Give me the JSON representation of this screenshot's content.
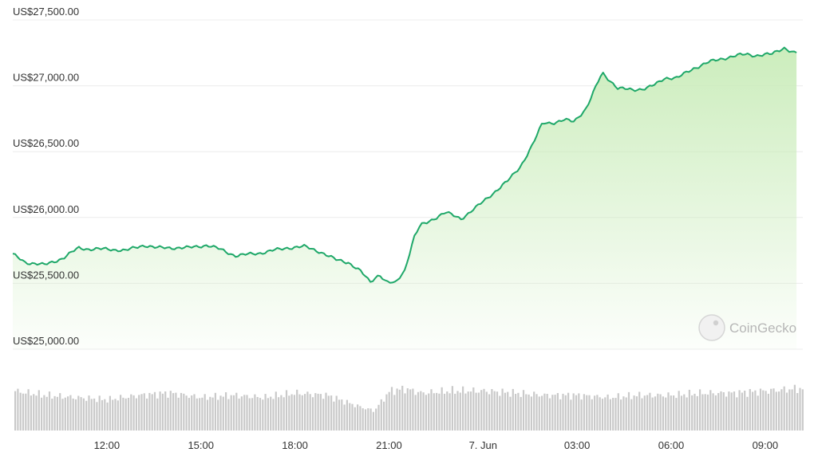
{
  "chart_data": {
    "type": "area",
    "watermark": "CoinGecko",
    "price": {
      "yticks": [
        25000,
        25500,
        26000,
        26500,
        27000,
        27500
      ],
      "ytick_labels": [
        "US$25,000.00",
        "US$25,500.00",
        "US$26,000.00",
        "US$26,500.00",
        "US$27,000.00",
        "US$27,500.00"
      ],
      "ylim": [
        25000,
        27500
      ],
      "x": [
        9.0,
        9.4,
        10.0,
        10.6,
        11.1,
        11.4,
        12.0,
        12.6,
        13.2,
        13.6,
        14.1,
        14.6,
        15.2,
        15.6,
        16.1,
        16.5,
        16.9,
        17.3,
        17.8,
        18.3,
        18.8,
        19.3,
        19.7,
        20.1,
        20.4,
        20.7,
        20.9,
        21.2,
        21.5,
        21.8,
        22.0,
        22.2,
        22.5,
        22.8,
        23.3,
        23.8,
        24.3,
        24.8,
        25.2,
        25.6,
        25.9,
        26.3,
        26.6,
        26.9,
        27.3,
        27.8,
        28.3,
        28.8,
        29.2,
        29.5,
        29.8,
        30.2,
        30.7,
        31.2,
        31.7,
        32.1,
        32.4,
        32.7,
        33.2,
        33.6,
        33.9,
        34.0
      ],
      "values": [
        25720,
        25660,
        25640,
        25690,
        25770,
        25760,
        25760,
        25750,
        25790,
        25770,
        25770,
        25770,
        25790,
        25760,
        25710,
        25720,
        25730,
        25750,
        25770,
        25780,
        25740,
        25680,
        25660,
        25590,
        25510,
        25570,
        25510,
        25500,
        25600,
        25850,
        25940,
        25960,
        26000,
        26040,
        25990,
        26080,
        26180,
        26280,
        26390,
        26560,
        26720,
        26720,
        26740,
        26730,
        26830,
        27100,
        26980,
        26970,
        26980,
        27010,
        27060,
        27060,
        27130,
        27180,
        27210,
        27230,
        27240,
        27230,
        27240,
        27290,
        27250,
        27250
      ]
    },
    "volume": {
      "x": [
        9.0,
        10.0,
        11.0,
        12.0,
        13.0,
        14.0,
        15.0,
        16.0,
        17.0,
        18.0,
        19.0,
        20.0,
        20.5,
        21.0,
        21.5,
        22.0,
        23.0,
        24.0,
        25.0,
        26.0,
        27.0,
        28.0,
        29.0,
        30.0,
        31.0,
        32.0,
        33.0,
        34.0
      ],
      "values": [
        0.9,
        0.8,
        0.75,
        0.7,
        0.8,
        0.85,
        0.75,
        0.8,
        0.75,
        0.85,
        0.8,
        0.55,
        0.45,
        0.9,
        0.95,
        0.85,
        0.9,
        0.9,
        0.85,
        0.8,
        0.8,
        0.75,
        0.8,
        0.8,
        0.85,
        0.85,
        0.9,
        0.95
      ]
    },
    "xticks": [
      12,
      15,
      18,
      21,
      24,
      27,
      30,
      33
    ],
    "xtick_labels": [
      "12:00",
      "15:00",
      "18:00",
      "21:00",
      "7. Jun",
      "03:00",
      "06:00",
      "09:00"
    ],
    "xlim": [
      9.0,
      34.2
    ],
    "grid": true,
    "colors": {
      "line": "#1fa869",
      "fill_top": "#c9ecb9",
      "grid": "#ececec",
      "volume_bar": "#c9c9c9",
      "watermark": "#bdbdbd"
    }
  }
}
